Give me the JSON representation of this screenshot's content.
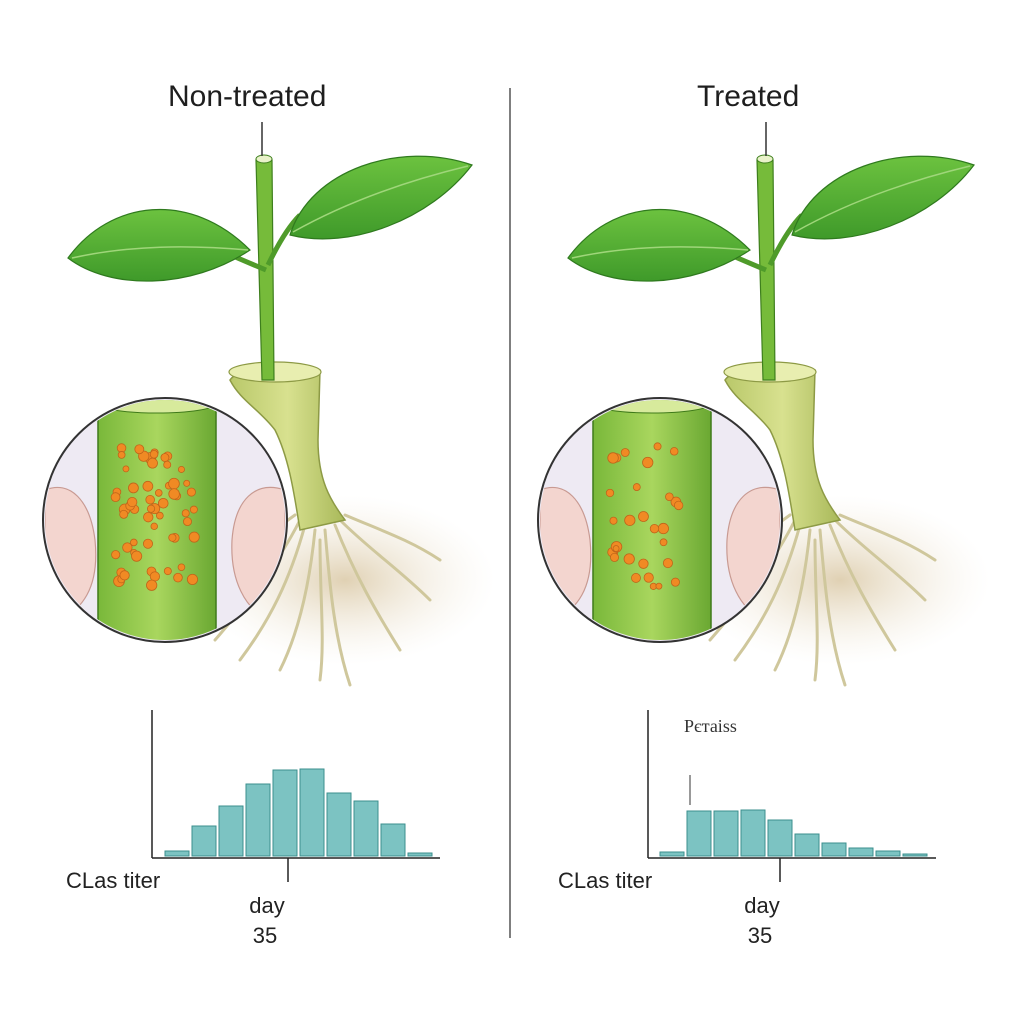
{
  "panels": [
    {
      "title": "Non-treated",
      "ylabel": "CLas titer",
      "xlabel": "day",
      "xvalue": "35",
      "annotation": "",
      "chart_data": {
        "type": "bar",
        "xlabel": "day",
        "ylabel": "CLas titer",
        "values": [
          0.05,
          0.3,
          0.5,
          0.72,
          0.86,
          0.87,
          0.63,
          0.55,
          0.32,
          0.03
        ],
        "ylim": [
          0,
          1
        ]
      }
    },
    {
      "title": "Treated",
      "ylabel": "CLas titer",
      "xlabel": "day",
      "xvalue": "35",
      "annotation": "Pєтаіѕѕ",
      "chart_data": {
        "type": "bar",
        "xlabel": "day",
        "ylabel": "CLas titer",
        "values": [
          0.04,
          0.45,
          0.45,
          0.46,
          0.36,
          0.22,
          0.13,
          0.08,
          0.05,
          0.02
        ],
        "ylim": [
          0,
          1
        ]
      }
    }
  ],
  "colors": {
    "bar": "#7cc3c2",
    "bar_stroke": "#3b8f8e",
    "bacteria": "#f08a24",
    "leaf": "#5fb838",
    "stem": "#c9d67e",
    "root": "#e2dcb4"
  }
}
